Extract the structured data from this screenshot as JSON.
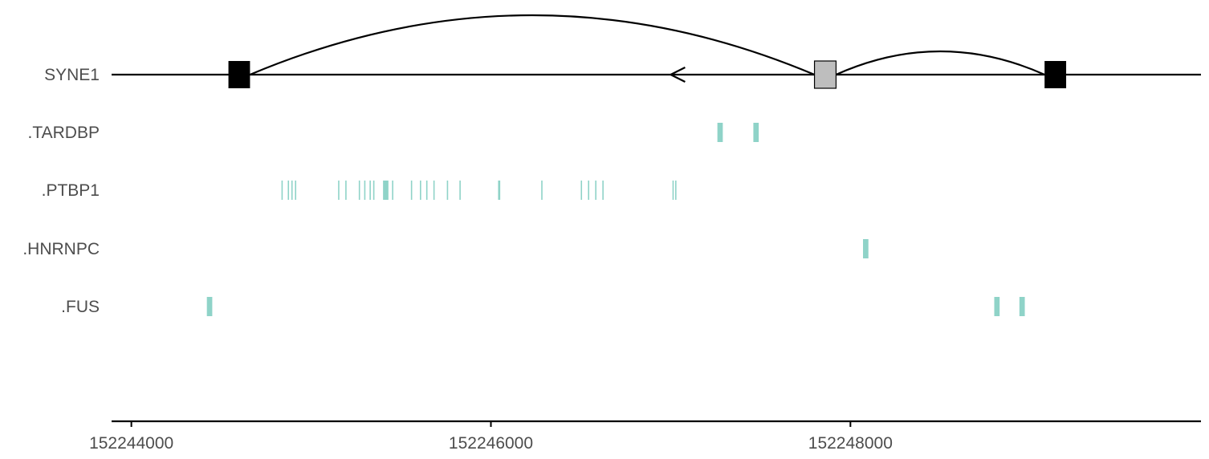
{
  "chart_data": {
    "type": "genome-track",
    "title": "",
    "xlabel": "",
    "ylabel": "",
    "xlim": [
      152243890,
      152249950
    ],
    "x_ticks": [
      152244000,
      152246000,
      152248000
    ],
    "tracks": [
      "SYNE1",
      ".TARDBP",
      ".PTBP1",
      ".HNRNPC",
      ".FUS"
    ],
    "gene": {
      "name": "SYNE1",
      "strand": "-",
      "line_range": [
        152243890,
        152249950
      ],
      "arrow_at": 152247000,
      "exons": [
        {
          "start": 152244540,
          "end": 152244660,
          "type": "flanking",
          "color": "#000000"
        },
        {
          "start": 152247800,
          "end": 152247920,
          "type": "alternative",
          "color": "#bebebe"
        },
        {
          "start": 152249080,
          "end": 152249200,
          "type": "flanking",
          "color": "#000000"
        }
      ],
      "junctions": [
        {
          "from": 152244660,
          "to": 152247800,
          "height": "high"
        },
        {
          "from": 152247920,
          "to": 152249080,
          "height": "low"
        }
      ]
    },
    "binding_sites": {
      "color": "#8fd3c8",
      ".TARDBP": [
        [
          152247260,
          152247290
        ],
        [
          152247460,
          152247490
        ]
      ],
      ".PTBP1": [
        [
          152244835,
          152244841
        ],
        [
          152244870,
          152244876
        ],
        [
          152244890,
          152244896
        ],
        [
          152244910,
          152244916
        ],
        [
          152245150,
          152245156
        ],
        [
          152245190,
          152245196
        ],
        [
          152245265,
          152245271
        ],
        [
          152245295,
          152245301
        ],
        [
          152245325,
          152245331
        ],
        [
          152245345,
          152245351
        ],
        [
          152245400,
          152245430
        ],
        [
          152245450,
          152245456
        ],
        [
          152245555,
          152245561
        ],
        [
          152245605,
          152245611
        ],
        [
          152245640,
          152245646
        ],
        [
          152245680,
          152245686
        ],
        [
          152245755,
          152245761
        ],
        [
          152245825,
          152245831
        ],
        [
          152246040,
          152246052
        ],
        [
          152246280,
          152246286
        ],
        [
          152246500,
          152246506
        ],
        [
          152246540,
          152246546
        ],
        [
          152246580,
          152246586
        ],
        [
          152246620,
          152246626
        ],
        [
          152247010,
          152247016
        ],
        [
          152247025,
          152247031
        ]
      ],
      ".HNRNPC": [
        [
          152248070,
          152248100
        ]
      ],
      ".FUS": [
        [
          152244420,
          152244450
        ],
        [
          152248800,
          152248830
        ],
        [
          152248940,
          152248970
        ]
      ]
    }
  }
}
